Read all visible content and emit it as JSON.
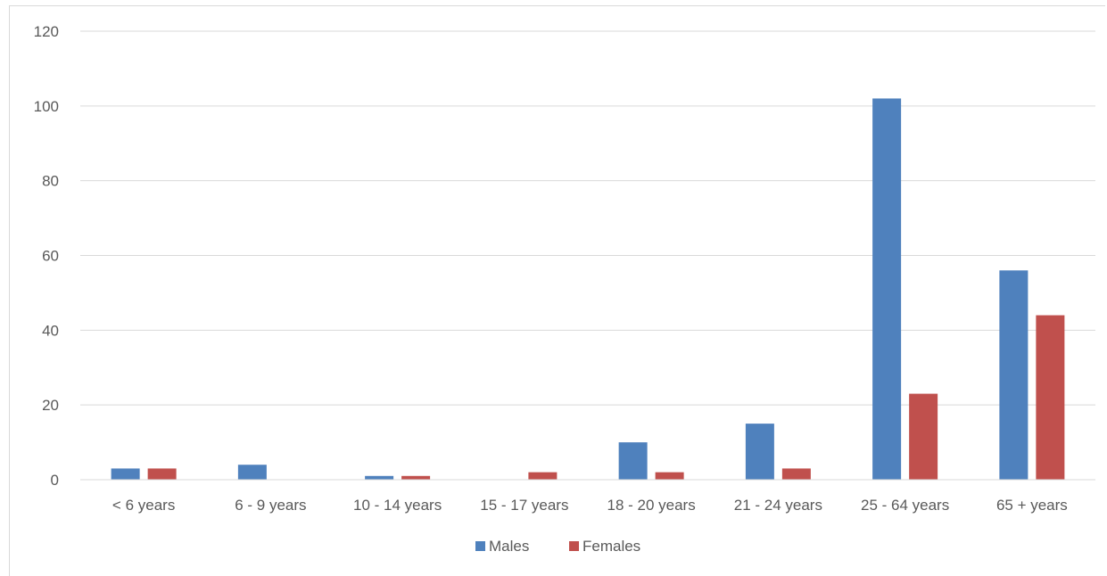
{
  "chart_data": {
    "type": "bar",
    "title": "",
    "xlabel": "",
    "ylabel": "",
    "categories": [
      "< 6 years",
      "6 - 9 years",
      "10 - 14 years",
      "15 - 17 years",
      "18 - 20 years",
      "21 - 24 years",
      "25 - 64 years",
      "65 + years"
    ],
    "series": [
      {
        "name": "Males",
        "color": "#4f81bd",
        "values": [
          3,
          4,
          1,
          0,
          10,
          15,
          102,
          56
        ]
      },
      {
        "name": "Females",
        "color": "#c0504d",
        "values": [
          3,
          0,
          1,
          2,
          2,
          3,
          23,
          44
        ]
      }
    ],
    "ylim": [
      0,
      120
    ],
    "yticks": [
      0,
      20,
      40,
      60,
      80,
      100,
      120
    ],
    "grid": true,
    "legend_position": "bottom"
  }
}
